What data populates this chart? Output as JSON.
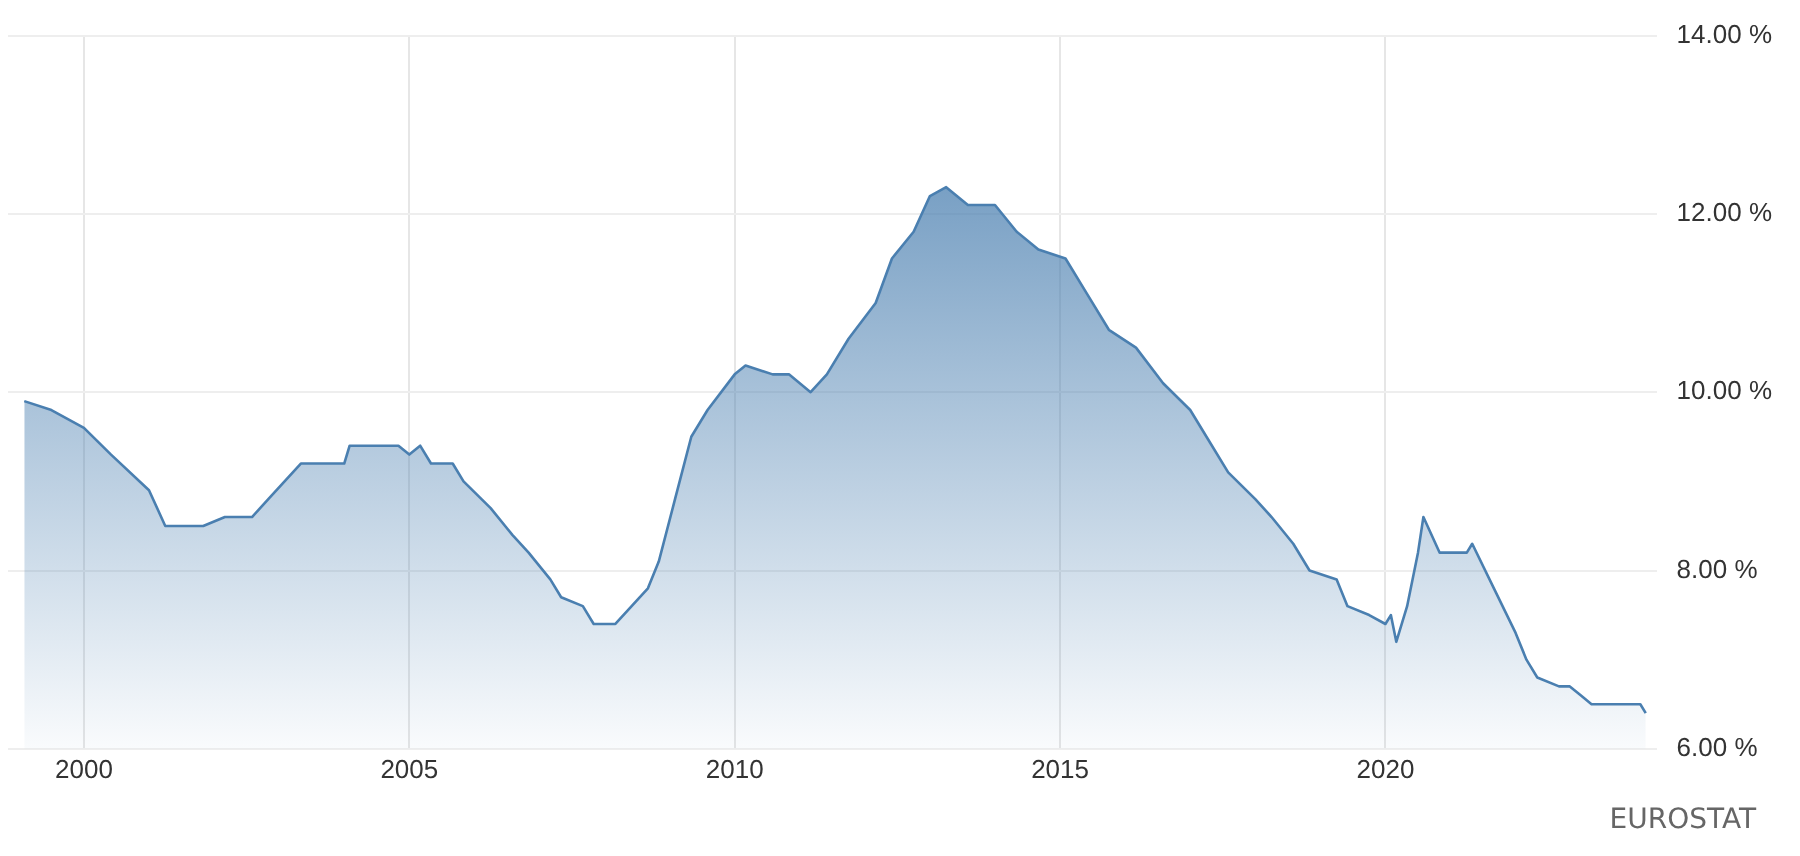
{
  "chart_data": {
    "type": "area",
    "x": [
      "1999-02",
      "1999-07",
      "2000-01",
      "2000-06",
      "2001-01",
      "2001-04",
      "2001-11",
      "2002-03",
      "2002-08",
      "2002-11",
      "2003-02",
      "2003-05",
      "2004-01",
      "2004-02",
      "2004-11",
      "2005-01",
      "2005-03",
      "2005-05",
      "2005-09",
      "2005-11",
      "2006-04",
      "2006-08",
      "2006-11",
      "2007-03",
      "2007-05",
      "2007-09",
      "2007-11",
      "2008-03",
      "2008-06",
      "2008-09",
      "2008-11",
      "2009-02",
      "2009-05",
      "2009-08",
      "2010-01",
      "2010-03",
      "2010-08",
      "2010-11",
      "2011-03",
      "2011-06",
      "2011-10",
      "2012-03",
      "2012-06",
      "2012-10",
      "2013-01",
      "2013-04",
      "2013-08",
      "2014-01",
      "2014-05",
      "2014-09",
      "2015-02",
      "2015-06",
      "2015-10",
      "2016-03",
      "2016-08",
      "2017-01",
      "2017-04",
      "2017-08",
      "2018-01",
      "2018-04",
      "2018-08",
      "2018-11",
      "2019-04",
      "2019-06",
      "2019-10",
      "2020-01",
      "2020-02",
      "2020-03",
      "2020-05",
      "2020-07",
      "2020-08",
      "2020-11",
      "2021-04",
      "2021-05",
      "2021-09",
      "2022-01",
      "2022-03",
      "2022-05",
      "2022-09",
      "2022-11",
      "2023-01",
      "2023-03",
      "2023-12",
      "2024-01"
    ],
    "series": [
      {
        "color": "#4a7fb0",
        "values": [
          9.9,
          9.8,
          9.6,
          9.3,
          8.9,
          8.5,
          8.5,
          8.6,
          8.6,
          8.8,
          9.0,
          9.2,
          9.2,
          9.4,
          9.4,
          9.3,
          9.4,
          9.2,
          9.2,
          9.0,
          8.7,
          8.4,
          8.2,
          7.9,
          7.7,
          7.6,
          7.4,
          7.4,
          7.6,
          7.8,
          8.1,
          8.8,
          9.5,
          9.8,
          10.2,
          10.3,
          10.2,
          10.2,
          10.0,
          10.2,
          10.6,
          11.0,
          11.5,
          11.8,
          12.2,
          12.3,
          12.1,
          12.1,
          11.8,
          11.6,
          11.5,
          11.1,
          10.7,
          10.5,
          10.1,
          9.8,
          9.5,
          9.1,
          8.8,
          8.6,
          8.3,
          8.0,
          7.9,
          7.6,
          7.5,
          7.4,
          7.5,
          7.2,
          7.6,
          8.2,
          8.6,
          8.2,
          8.2,
          8.3,
          7.8,
          7.3,
          7.0,
          6.8,
          6.7,
          6.7,
          6.6,
          6.5,
          6.5,
          6.4
        ]
      }
    ],
    "xlim": [
      "1998-11",
      "2024-03"
    ],
    "xticks": [
      "2000",
      "2005",
      "2010",
      "2015",
      "2020"
    ],
    "ylim": [
      6,
      14
    ],
    "yticks": [
      {
        "value": 6,
        "label": "6.00 %"
      },
      {
        "value": 8,
        "label": "8.00 %"
      },
      {
        "value": 10,
        "label": "10.00 %"
      },
      {
        "value": 12,
        "label": "12.00 %"
      },
      {
        "value": 14,
        "label": "14.00 %"
      }
    ],
    "grid": true,
    "legend": false,
    "marker": "none",
    "line_style": "solid",
    "annotations": [
      "EUROSTAT"
    ]
  }
}
